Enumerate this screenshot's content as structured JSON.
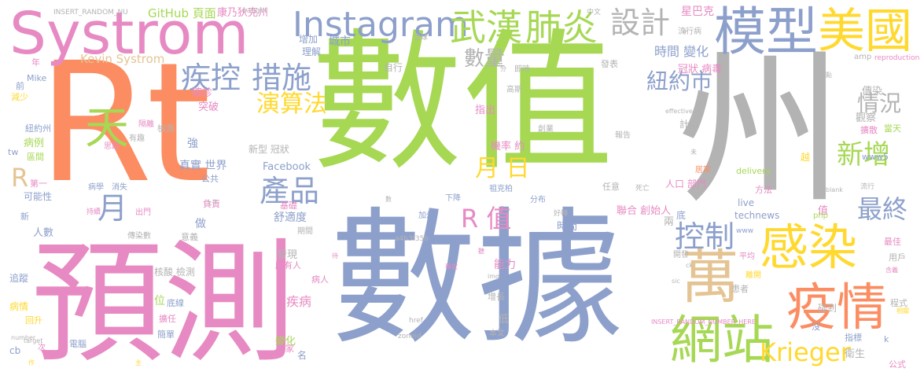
{
  "colors": {
    "orange": "#fc8d62",
    "blue": "#8da0cb",
    "pink": "#e78ac3",
    "green": "#a6d854",
    "yellow": "#ffd92f",
    "tan": "#e5c494",
    "gray": "#b3b3b3",
    "teal": "#66c2a5"
  },
  "words": [
    {
      "text": "Rt",
      "color": "orange"
    },
    {
      "text": "數值",
      "color": "green"
    },
    {
      "text": "州",
      "color": "gray"
    },
    {
      "text": "數據",
      "color": "blue"
    },
    {
      "text": "預測",
      "color": "pink"
    },
    {
      "text": "Systrom",
      "color": "pink"
    },
    {
      "text": "模型",
      "color": "blue"
    },
    {
      "text": "美國",
      "color": "yellow"
    },
    {
      "text": "Instagram",
      "color": "blue"
    },
    {
      "text": "武漢",
      "color": "green"
    },
    {
      "text": "肺炎",
      "color": "green"
    },
    {
      "text": "設計",
      "color": "gray"
    },
    {
      "text": "疾控",
      "color": "blue"
    },
    {
      "text": "措施",
      "color": "blue"
    },
    {
      "text": "數量",
      "color": "gray"
    },
    {
      "text": "紐約市",
      "color": "blue"
    },
    {
      "text": "演算法",
      "color": "yellow"
    },
    {
      "text": "情況",
      "color": "gray"
    },
    {
      "text": "天",
      "color": "green"
    },
    {
      "text": "新增",
      "color": "green"
    },
    {
      "text": "產品",
      "color": "blue"
    },
    {
      "text": "月 日",
      "color": "yellow"
    },
    {
      "text": "最終",
      "color": "blue"
    },
    {
      "text": "感染",
      "color": "yellow"
    },
    {
      "text": "疫情",
      "color": "orange"
    },
    {
      "text": "萬",
      "color": "tan"
    },
    {
      "text": "網站",
      "color": "green"
    },
    {
      "text": "控制",
      "color": "blue"
    },
    {
      "text": "R 值",
      "color": "pink"
    },
    {
      "text": "Krieger",
      "color": "yellow"
    },
    {
      "text": "Kevin Systrom",
      "color": "tan"
    },
    {
      "text": "GitHub 頁面",
      "color": "green"
    },
    {
      "text": "康乃狄克州",
      "color": "pink"
    },
    {
      "text": "INSERT_RANDOM_NU",
      "color": "gray"
    },
    {
      "text": "naught",
      "color": "gray"
    },
    {
      "text": "星巴克",
      "color": "pink"
    },
    {
      "text": "中文",
      "color": "gray"
    },
    {
      "text": "城市",
      "color": "blue"
    },
    {
      "text": "增加",
      "color": "blue"
    },
    {
      "text": "全球",
      "color": "gray"
    },
    {
      "text": "理解",
      "color": "blue"
    },
    {
      "text": "自行",
      "color": "gray"
    },
    {
      "text": "時間 變化",
      "color": "blue"
    },
    {
      "text": "冠狀 病毒",
      "color": "pink"
    },
    {
      "text": "發表",
      "color": "gray"
    },
    {
      "text": "流行病",
      "color": "gray"
    },
    {
      "text": "即時",
      "color": "gray"
    },
    {
      "text": "高斯",
      "color": "gray"
    },
    {
      "text": "確診",
      "color": "pink"
    },
    {
      "text": "突破",
      "color": "pink"
    },
    {
      "text": "指出",
      "color": "pink"
    },
    {
      "text": "傳染",
      "color": "gray"
    },
    {
      "text": "觀察",
      "color": "gray"
    },
    {
      "text": "當天",
      "color": "green"
    },
    {
      "text": "擴散",
      "color": "pink"
    },
    {
      "text": "衛生",
      "color": "gray"
    },
    {
      "text": "公式",
      "color": "pink"
    },
    {
      "text": "指標",
      "color": "blue"
    },
    {
      "text": "程式",
      "color": "gray"
    },
    {
      "text": "碰到",
      "color": "gray"
    },
    {
      "text": "用戶",
      "color": "gray"
    },
    {
      "text": "最佳",
      "color": "pink"
    },
    {
      "text": "離開",
      "color": "yellow"
    },
    {
      "text": "平均",
      "color": "pink"
    },
    {
      "text": "開發",
      "color": "gray"
    },
    {
      "text": "患者",
      "color": "gray"
    },
    {
      "text": "人口 部門",
      "color": "pink"
    },
    {
      "text": "方法",
      "color": "pink"
    },
    {
      "text": "居家",
      "color": "orange"
    },
    {
      "text": "死亡",
      "color": "gray"
    },
    {
      "text": "任意",
      "color": "gray"
    },
    {
      "text": "報告",
      "color": "gray"
    },
    {
      "text": "機率 約",
      "color": "pink"
    },
    {
      "text": "創業",
      "color": "gray"
    },
    {
      "text": "計算",
      "color": "gray"
    },
    {
      "text": "聯合 創始人",
      "color": "pink"
    },
    {
      "text": "live",
      "color": "blue"
    },
    {
      "text": "technews",
      "color": "blue"
    },
    {
      "text": "www",
      "color": "blue"
    },
    {
      "text": "值",
      "color": "pink"
    },
    {
      "text": "底",
      "color": "blue"
    },
    {
      "text": "兩",
      "color": "gray"
    },
    {
      "text": "時間",
      "color": "blue"
    },
    {
      "text": "能力",
      "color": "pink"
    },
    {
      "text": "下降",
      "color": "blue"
    },
    {
      "text": "祖克柏",
      "color": "blue"
    },
    {
      "text": "分布",
      "color": "blue"
    },
    {
      "text": "加州",
      "color": "blue"
    },
    {
      "text": "增長",
      "color": "gray"
    },
    {
      "text": "低",
      "color": "gray"
    },
    {
      "text": "本文",
      "color": "gray"
    },
    {
      "text": "發現",
      "color": "gray"
    },
    {
      "text": "所有人",
      "color": "pink"
    },
    {
      "text": "病人",
      "color": "pink"
    },
    {
      "text": "疾病",
      "color": "pink"
    },
    {
      "text": "變化",
      "color": "green"
    },
    {
      "text": "國家",
      "color": "pink"
    },
    {
      "text": "期間",
      "color": "gray"
    },
    {
      "text": "舒適度",
      "color": "blue"
    },
    {
      "text": "基礎",
      "color": "pink"
    },
    {
      "text": "新型 冠狀",
      "color": "gray"
    },
    {
      "text": "Facebook",
      "color": "blue"
    },
    {
      "text": "真實 世界",
      "color": "blue"
    },
    {
      "text": "公共",
      "color": "blue"
    },
    {
      "text": "負責",
      "color": "pink"
    },
    {
      "text": "做",
      "color": "blue"
    },
    {
      "text": "意義",
      "color": "gray"
    },
    {
      "text": "核酸 檢測",
      "color": "gray"
    },
    {
      "text": "位",
      "color": "green"
    },
    {
      "text": "底線",
      "color": "blue"
    },
    {
      "text": "擴任",
      "color": "pink"
    },
    {
      "text": "簡單",
      "color": "blue"
    },
    {
      "text": "電腦",
      "color": "blue"
    },
    {
      "text": "檢測",
      "color": "gray"
    },
    {
      "text": "隔離",
      "color": "pink"
    },
    {
      "text": "有趣",
      "color": "gray"
    },
    {
      "text": "思路",
      "color": "pink"
    },
    {
      "text": "病例",
      "color": "green"
    },
    {
      "text": "區間",
      "color": "green"
    },
    {
      "text": "第一",
      "color": "pink"
    },
    {
      "text": "可能性",
      "color": "blue"
    },
    {
      "text": "病學",
      "color": "blue"
    },
    {
      "text": "消失",
      "color": "blue"
    },
    {
      "text": "出門",
      "color": "pink"
    },
    {
      "text": "傳染數",
      "color": "gray"
    },
    {
      "text": "人數",
      "color": "blue"
    },
    {
      "text": "追蹤",
      "color": "blue"
    },
    {
      "text": "病情",
      "color": "yellow"
    },
    {
      "text": "回升",
      "color": "yellow"
    },
    {
      "text": "紐約州",
      "color": "blue"
    },
    {
      "text": "Mike",
      "color": "blue"
    },
    {
      "text": "減少",
      "color": "yellow"
    },
    {
      "text": "前",
      "color": "blue"
    },
    {
      "text": "年",
      "color": "pink"
    },
    {
      "text": "強",
      "color": "blue"
    },
    {
      "text": "新",
      "color": "blue"
    },
    {
      "text": "次",
      "color": "pink"
    },
    {
      "text": "cb",
      "color": "blue"
    },
    {
      "text": "tw",
      "color": "blue"
    },
    {
      "text": "R",
      "color": "tan"
    },
    {
      "text": "月",
      "color": "blue"
    },
    {
      "text": "www5",
      "color": "blue"
    },
    {
      "text": "delivery",
      "color": "green"
    },
    {
      "text": "流行",
      "color": "gray"
    },
    {
      "text": "越",
      "color": "yellow"
    },
    {
      "text": "php",
      "color": "green"
    },
    {
      "text": "amp",
      "color": "gray"
    },
    {
      "text": "reproduction",
      "color": "pink"
    },
    {
      "text": "a4b3f35b",
      "color": "gray"
    },
    {
      "text": "href",
      "color": "gray"
    },
    {
      "text": "zoneid",
      "color": "gray"
    },
    {
      "text": "_blank",
      "color": "gray"
    },
    {
      "text": "k",
      "color": "blue"
    },
    {
      "text": "沒",
      "color": "blue"
    },
    {
      "text": "INSERT_RANDOM_NUMBER_HERE",
      "color": "pink"
    },
    {
      "text": "名",
      "color": "blue"
    },
    {
      "text": "分",
      "color": "gray"
    },
    {
      "text": "點",
      "color": "gray"
    },
    {
      "text": "未",
      "color": "gray"
    },
    {
      "text": "effective",
      "color": "gray"
    },
    {
      "text": "img",
      "color": "gray"
    },
    {
      "text": "ck",
      "color": "gray"
    },
    {
      "text": "sic",
      "color": "gray"
    },
    {
      "text": "target",
      "color": "gray"
    },
    {
      "text": "number",
      "color": "gray"
    },
    {
      "text": "主",
      "color": "yellow"
    },
    {
      "text": "作",
      "color": "yellow"
    },
    {
      "text": "好轉",
      "color": "gray"
    },
    {
      "text": "持續",
      "color": "pink"
    },
    {
      "text": "上午",
      "color": "gray"
    },
    {
      "text": "a",
      "color": "gray"
    },
    {
      "text": "含義",
      "color": "pink"
    },
    {
      "text": "相關",
      "color": "yellow"
    },
    {
      "text": "專家",
      "color": "pink"
    },
    {
      "text": "聽",
      "color": "pink"
    },
    {
      "text": "待",
      "color": "pink"
    },
    {
      "text": "數",
      "color": "gray"
    }
  ]
}
